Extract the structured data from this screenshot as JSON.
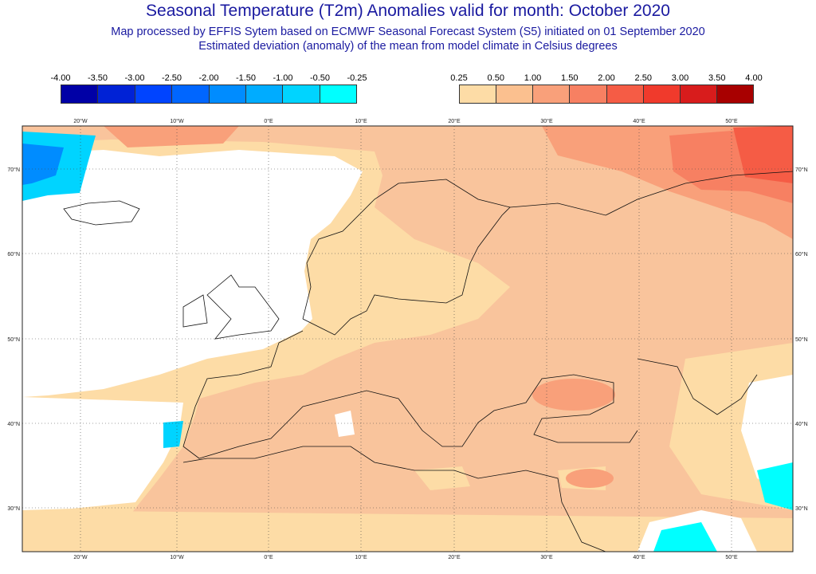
{
  "title": "Seasonal Temperature (T2m) Anomalies valid for month: October 2020",
  "subtitle1": "Map processed by EFFIS Sytem based on ECMWF Seasonal Forecast System (S5) initiated on 01 September 2020",
  "subtitle2": "Estimated deviation (anomaly) of the mean from model climate in Celsius degrees",
  "legend_negative": {
    "labels": [
      "-4.00",
      "-3.50",
      "-3.00",
      "-2.50",
      "-2.00",
      "-1.50",
      "-1.00",
      "-0.50",
      "-0.25"
    ],
    "colors": [
      "#0000a6",
      "#0022d6",
      "#0044ff",
      "#0066ff",
      "#008cff",
      "#00acff",
      "#00d4ff",
      "#00ffff"
    ]
  },
  "legend_positive": {
    "labels": [
      "0.25",
      "0.50",
      "1.00",
      "1.50",
      "2.00",
      "2.50",
      "3.00",
      "3.50",
      "4.00"
    ],
    "colors": [
      "#fddca6",
      "#fbc08f",
      "#f9a07a",
      "#f78062",
      "#f55c45",
      "#f03a2c",
      "#d81c1c",
      "#a80000"
    ]
  },
  "lon_labels": [
    "20°W",
    "10°W",
    "0°E",
    "10°E",
    "20°E",
    "30°E",
    "40°E",
    "50°E"
  ],
  "lat_labels": [
    "70°N",
    "60°N",
    "50°N",
    "40°N",
    "30°N"
  ]
}
